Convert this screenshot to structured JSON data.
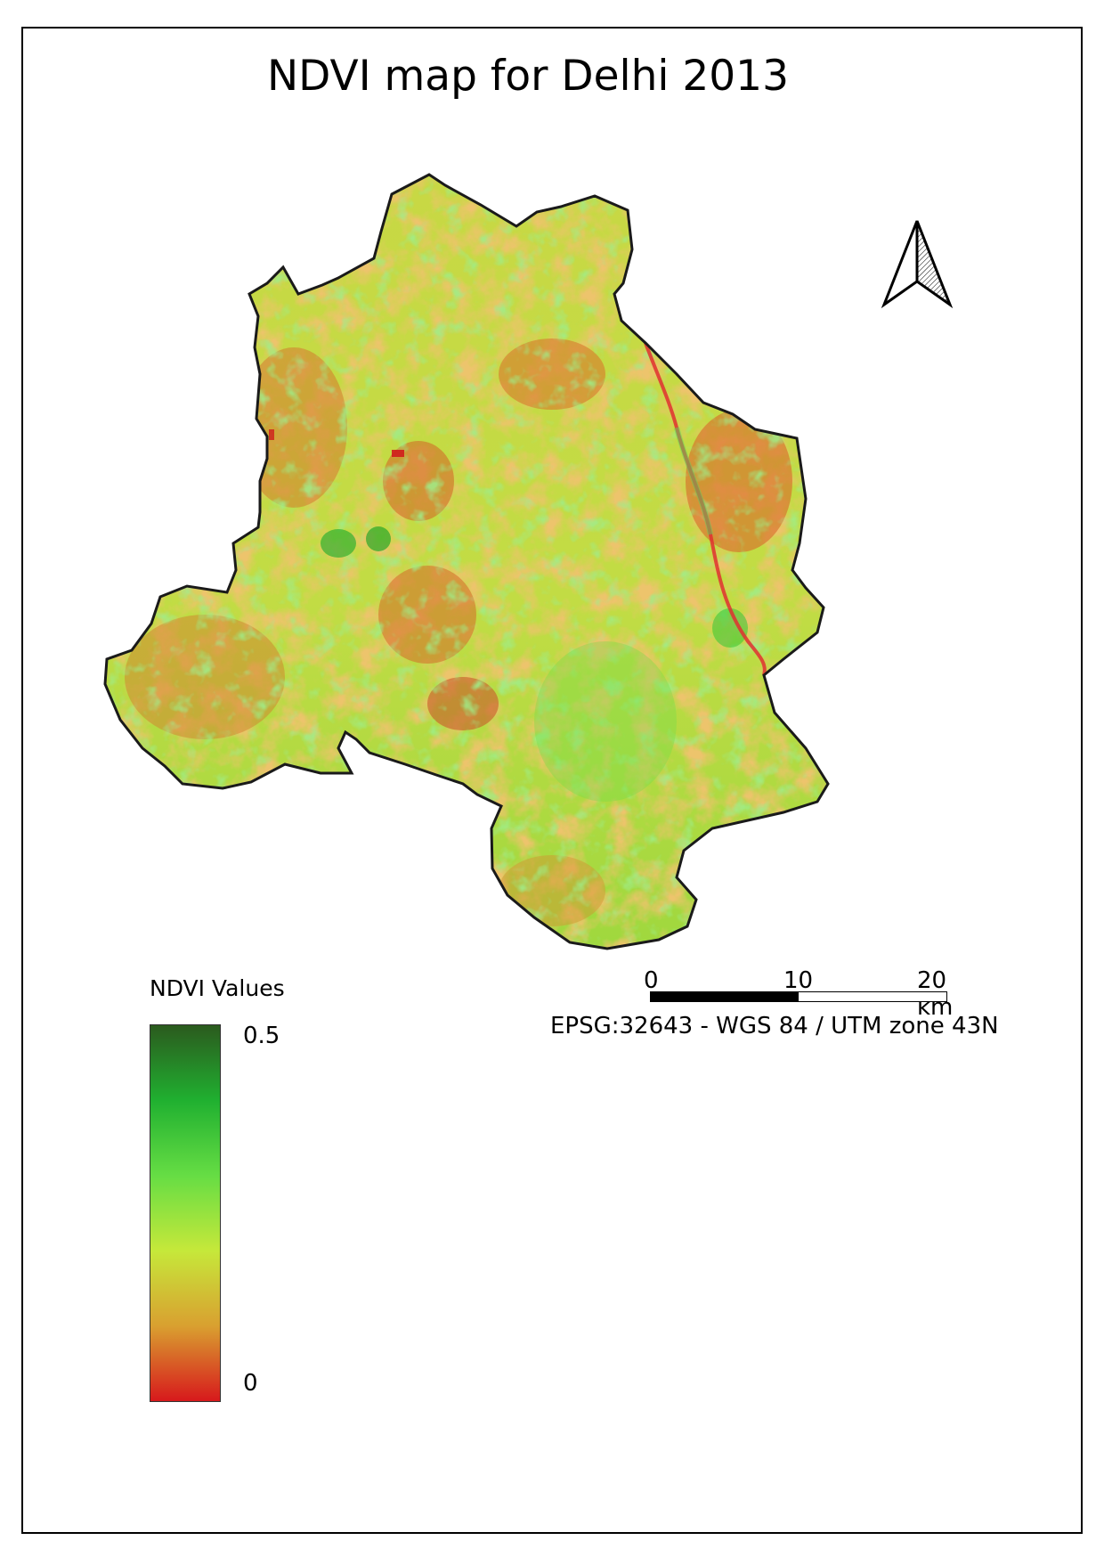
{
  "title": "NDVI map for Delhi 2013",
  "legend": {
    "title": "NDVI Values",
    "max_label": "0.5",
    "min_label": "0",
    "max_value": 0.5,
    "min_value": 0,
    "ramp_colors": [
      "#d7191c",
      "#d9a030",
      "#c6e83a",
      "#66dd44",
      "#20b030",
      "#2b5a1e"
    ]
  },
  "scale_bar": {
    "labels": [
      "0",
      "10",
      "20 km"
    ],
    "segment_km": 10
  },
  "crs": "EPSG:32643 - WGS 84 / UTM zone 43N",
  "map_colors": {
    "boundary": "#1a1a1a",
    "low": "#d8762c",
    "mid": "#c8e046",
    "high": "#5fd33e",
    "river": "#e03030"
  },
  "north_arrow": {
    "icon": "north-arrow-icon"
  }
}
